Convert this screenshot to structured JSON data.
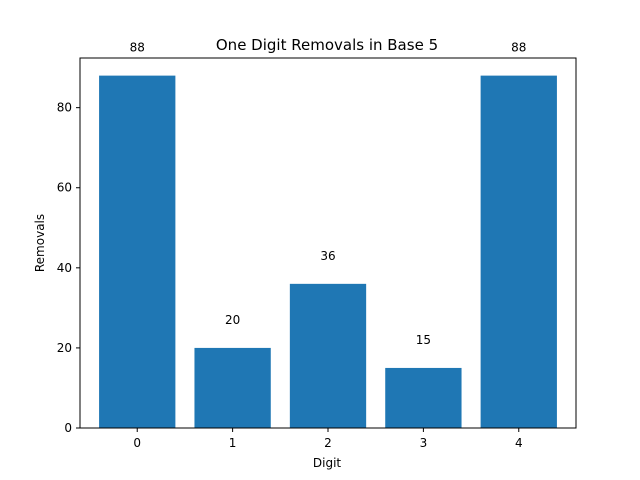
{
  "chart_data": {
    "type": "bar",
    "title": "One Digit Removals in Base 5",
    "xlabel": "Digit",
    "ylabel": "Removals",
    "categories": [
      "0",
      "1",
      "2",
      "3",
      "4"
    ],
    "values": [
      88,
      20,
      36,
      15,
      88
    ],
    "data_labels": [
      "88",
      "20",
      "36",
      "15",
      "88"
    ],
    "ylim": [
      0,
      92.4
    ],
    "yticks": [
      0,
      20,
      40,
      60,
      80
    ],
    "ytick_labels": [
      "0",
      "20",
      "40",
      "60",
      "80"
    ],
    "grid": false,
    "legend": "none",
    "bar_color": "#1f77b4"
  }
}
